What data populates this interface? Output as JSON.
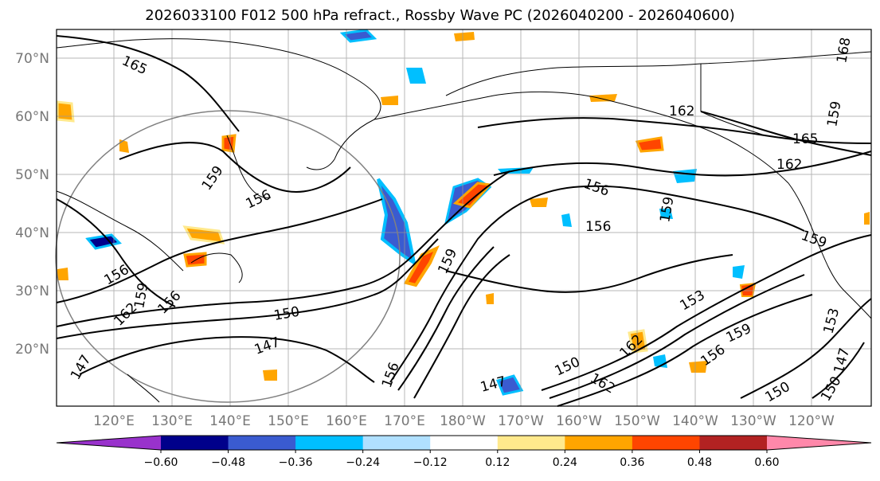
{
  "title": "2026033100 F012 500 hPa refract., Rossby Wave PC (2026040200 - 2026040600)",
  "map": {
    "lat_labels": [
      "70°N",
      "60°N",
      "50°N",
      "40°N",
      "30°N",
      "20°N"
    ],
    "lon_labels": [
      "120°E",
      "130°E",
      "140°E",
      "150°E",
      "160°E",
      "170°E",
      "180°W",
      "170°W",
      "160°W",
      "150°W",
      "140°W",
      "130°W",
      "120°W"
    ],
    "contour_labels": [
      "165",
      "159",
      "156",
      "156",
      "150",
      "147",
      "147",
      "147",
      "150",
      "153",
      "156",
      "159",
      "159",
      "162",
      "162",
      "162",
      "165",
      "162",
      "168",
      "159",
      "156",
      "156",
      "159",
      "159",
      "153",
      "150",
      "147",
      "150",
      "156",
      "159",
      "162",
      "156"
    ],
    "feature_colors": {
      "land_outline": "#000000",
      "contour": "#000000",
      "grid": "#999999",
      "circle": "#808080"
    }
  },
  "colorbar": {
    "colors": [
      "#9932cc",
      "#00008b",
      "#3a5bd0",
      "#00bfff",
      "#b0e0ff",
      "#ffffff",
      "#ffe98c",
      "#ffa500",
      "#ff4500",
      "#b22222",
      "#ff88aa"
    ],
    "tick_labels": [
      "−0.60",
      "−0.48",
      "−0.36",
      "−0.24",
      "−0.12",
      "0.12",
      "0.24",
      "0.36",
      "0.48",
      "0.60"
    ]
  }
}
